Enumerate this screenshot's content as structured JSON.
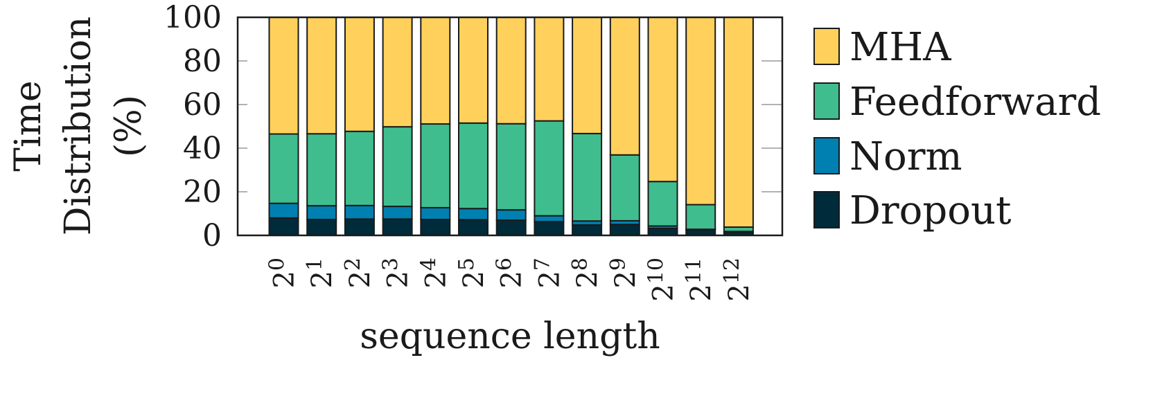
{
  "chart_data": {
    "type": "bar",
    "stacked": true,
    "title": "",
    "xlabel": "sequence length",
    "ylabel": [
      "Time",
      "Distribution",
      "(%)"
    ],
    "ylim": [
      0,
      100
    ],
    "yticks": [
      0,
      20,
      40,
      60,
      80,
      100
    ],
    "grid": "horizontal",
    "legend_position": "right",
    "categories": [
      {
        "base": "2",
        "exp": "0"
      },
      {
        "base": "2",
        "exp": "1"
      },
      {
        "base": "2",
        "exp": "2"
      },
      {
        "base": "2",
        "exp": "3"
      },
      {
        "base": "2",
        "exp": "4"
      },
      {
        "base": "2",
        "exp": "5"
      },
      {
        "base": "2",
        "exp": "6"
      },
      {
        "base": "2",
        "exp": "7"
      },
      {
        "base": "2",
        "exp": "8"
      },
      {
        "base": "2",
        "exp": "9"
      },
      {
        "base": "2",
        "exp": "10"
      },
      {
        "base": "2",
        "exp": "11"
      },
      {
        "base": "2",
        "exp": "12"
      }
    ],
    "series": [
      {
        "name": "Dropout",
        "color": "#002b3b",
        "values": [
          8.0,
          7.3,
          7.5,
          7.5,
          7.3,
          7.2,
          7.0,
          6.3,
          4.8,
          5.0,
          3.2,
          2.5,
          1.5
        ]
      },
      {
        "name": "Norm",
        "color": "#0080b0",
        "values": [
          6.7,
          6.3,
          6.2,
          5.8,
          5.4,
          5.1,
          4.7,
          2.7,
          1.8,
          1.7,
          1.1,
          0.3,
          0.3
        ]
      },
      {
        "name": "Feedforward",
        "color": "#40bd8f",
        "values": [
          31.8,
          33.0,
          34.0,
          36.5,
          38.4,
          39.2,
          39.5,
          43.5,
          40.1,
          30.2,
          20.4,
          11.3,
          2.0
        ]
      },
      {
        "name": "MHA",
        "color": "#ffd15c",
        "values": [
          53.5,
          53.4,
          52.3,
          50.2,
          48.9,
          48.5,
          48.8,
          47.5,
          53.3,
          63.1,
          75.3,
          85.9,
          96.2
        ]
      }
    ],
    "legend_order": [
      "MHA",
      "Feedforward",
      "Norm",
      "Dropout"
    ]
  }
}
